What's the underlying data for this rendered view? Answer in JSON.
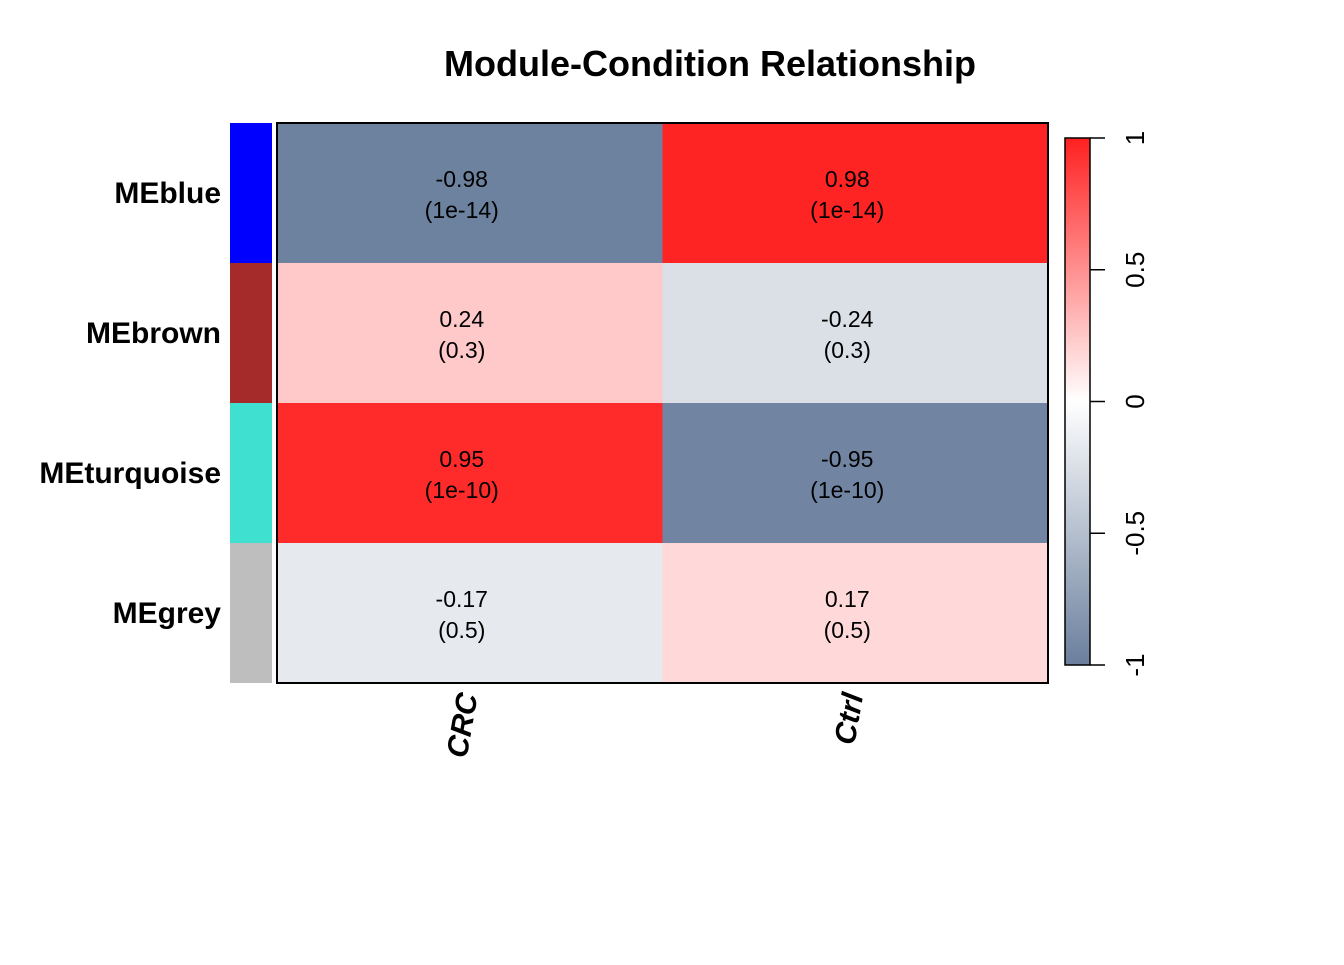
{
  "chart_data": {
    "type": "heatmap",
    "title": "Module-Condition Relationship",
    "columns": [
      "CRC",
      "Ctrl"
    ],
    "rows": [
      {
        "label": "MEblue",
        "color": "#0000FF",
        "values": [
          -0.98,
          0.98
        ],
        "display": [
          "-0.98",
          "0.98"
        ],
        "pvalues": [
          "(1e-14)",
          "(1e-14)"
        ]
      },
      {
        "label": "MEbrown",
        "color": "#A52A2A",
        "values": [
          0.24,
          -0.24
        ],
        "display": [
          "0.24",
          "-0.24"
        ],
        "pvalues": [
          "(0.3)",
          "(0.3)"
        ]
      },
      {
        "label": "MEturquoise",
        "color": "#40E0D0",
        "values": [
          0.95,
          -0.95
        ],
        "display": [
          "0.95",
          "-0.95"
        ],
        "pvalues": [
          "(1e-10)",
          "(1e-10)"
        ]
      },
      {
        "label": "MEgrey",
        "color": "#BEBEBE",
        "values": [
          -0.17,
          0.17
        ],
        "display": [
          "-0.17",
          "0.17"
        ],
        "pvalues": [
          "(0.5)",
          "(0.5)"
        ]
      }
    ],
    "colorbar": {
      "range": [
        -1,
        1
      ],
      "ticks": [
        -1,
        -0.5,
        0,
        0.5,
        1
      ],
      "tick_labels": [
        "-1",
        "-0.5",
        "0",
        "0.5",
        "1"
      ],
      "low_color": "#6A7F9D",
      "mid_color": "#FFFFFF",
      "high_color": "#FF2020"
    }
  }
}
